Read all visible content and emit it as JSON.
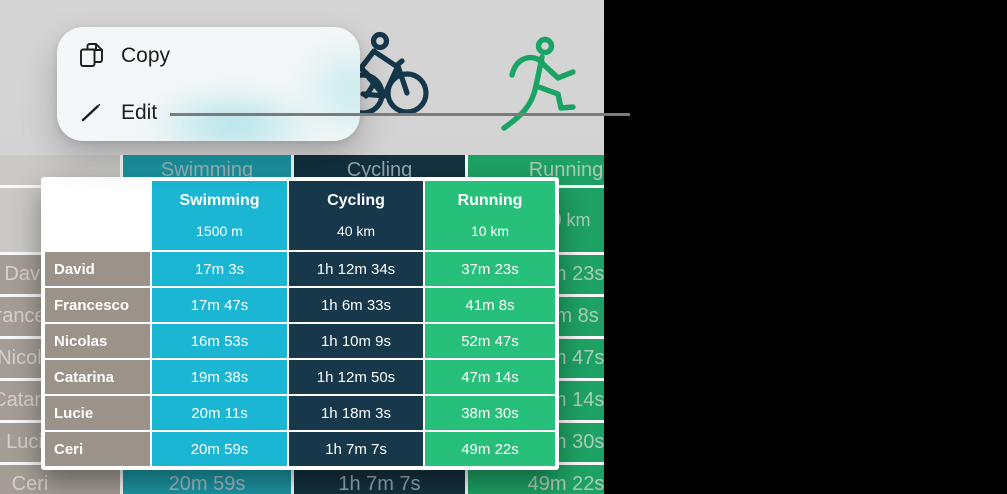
{
  "menu": {
    "items": [
      {
        "id": "copy",
        "label": "Copy",
        "icon": "copy-icon"
      },
      {
        "id": "edit",
        "label": "Edit",
        "icon": "pencil-icon"
      }
    ]
  },
  "table": {
    "columns": [
      {
        "name": "Swimming",
        "distance": "1500 m",
        "accent": "#1ab6d3",
        "dimmed": "#1b96a4"
      },
      {
        "name": "Cycling",
        "distance": "40 km",
        "accent": "#16384a",
        "dimmed": "#14313f"
      },
      {
        "name": "Running",
        "distance": "10 km",
        "accent": "#26c07a",
        "dimmed": "#1ea164"
      }
    ],
    "rows": [
      {
        "name": "David",
        "values": [
          "17m 3s",
          "1h 12m 34s",
          "37m 23s"
        ]
      },
      {
        "name": "Francesco",
        "values": [
          "17m 47s",
          "1h 6m 33s",
          "41m 8s"
        ]
      },
      {
        "name": "Nicolas",
        "values": [
          "16m 53s",
          "1h 10m 9s",
          "52m 47s"
        ]
      },
      {
        "name": "Catarina",
        "values": [
          "19m 38s",
          "1h 12m 50s",
          "47m 14s"
        ]
      },
      {
        "name": "Lucie",
        "values": [
          "20m 11s",
          "1h 18m 3s",
          "38m 30s"
        ]
      },
      {
        "name": "Ceri",
        "values": [
          "20m 59s",
          "1h 7m 7s",
          "49m 22s"
        ]
      }
    ]
  },
  "icons": {
    "cyclist": "cyclist-icon",
    "runner": "runner-icon"
  },
  "colors": {
    "sheet_backdrop": "#d2d2d2",
    "black_margin": "#000000",
    "callout_line": "#7b7b7b",
    "row_label_cell": "#9b9289",
    "overlay_border": "#ffffff"
  }
}
